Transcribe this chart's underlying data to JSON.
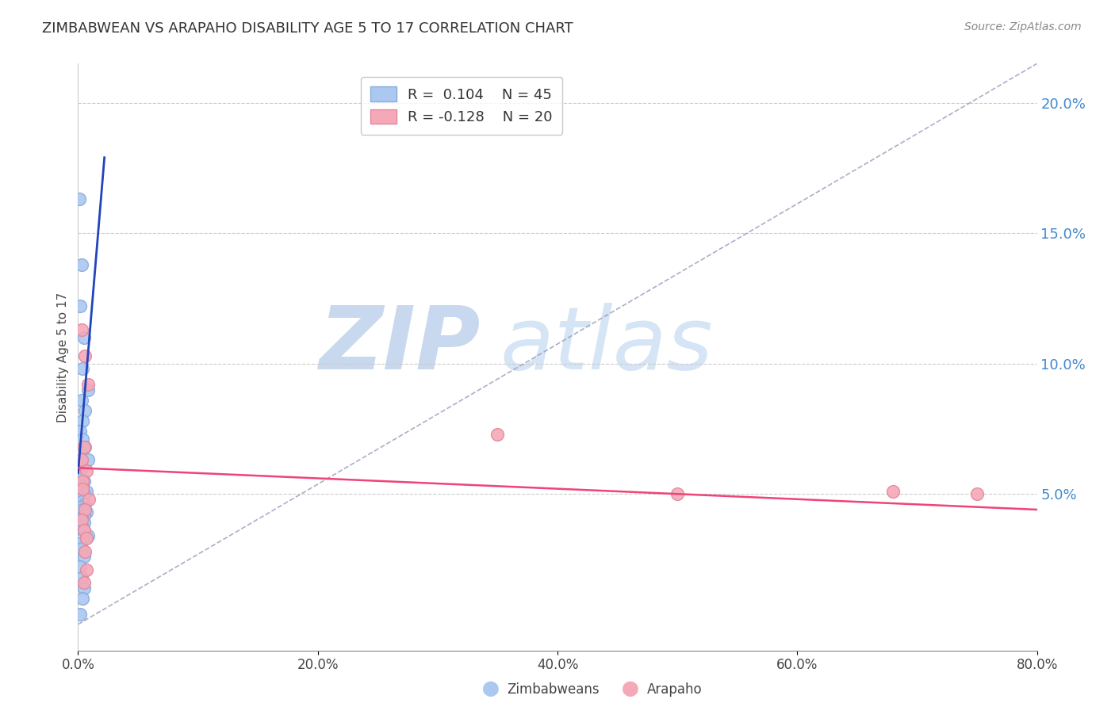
{
  "title": "ZIMBABWEAN VS ARAPAHO DISABILITY AGE 5 TO 17 CORRELATION CHART",
  "source": "Source: ZipAtlas.com",
  "ylabel": "Disability Age 5 to 17",
  "xlim": [
    0.0,
    0.8
  ],
  "ylim": [
    -0.01,
    0.215
  ],
  "xticks": [
    0.0,
    0.2,
    0.4,
    0.6,
    0.8
  ],
  "yticks_right": [
    0.05,
    0.1,
    0.15,
    0.2
  ],
  "xtick_labels": [
    "0.0%",
    "20.0%",
    "40.0%",
    "60.0%",
    "80.0%"
  ],
  "ytick_labels_right": [
    "5.0%",
    "10.0%",
    "15.0%",
    "20.0%"
  ],
  "legend_r1": "R =  0.104",
  "legend_n1": "N = 45",
  "legend_r2": "R = -0.128",
  "legend_n2": "N = 20",
  "zim_color": "#aac8f0",
  "ara_color": "#f5a8b8",
  "zim_edge": "#88aadd",
  "ara_edge": "#e08898",
  "zim_line_color": "#2244bb",
  "ara_line_color": "#ee4477",
  "ref_line_color": "#9999bb",
  "watermark_zip_color": "#c8d8ee",
  "watermark_atlas_color": "#d5e5f5",
  "zimbabwean_x": [
    0.001,
    0.003,
    0.002,
    0.005,
    0.004,
    0.008,
    0.003,
    0.006,
    0.004,
    0.002,
    0.004,
    0.006,
    0.002,
    0.008,
    0.003,
    0.002,
    0.005,
    0.003,
    0.002,
    0.007,
    0.005,
    0.004,
    0.002,
    0.003,
    0.006,
    0.002,
    0.004,
    0.007,
    0.005,
    0.003,
    0.002,
    0.005,
    0.003,
    0.002,
    0.005,
    0.008,
    0.004,
    0.002,
    0.003,
    0.005,
    0.002,
    0.003,
    0.005,
    0.004,
    0.002
  ],
  "zimbabwean_y": [
    0.163,
    0.138,
    0.122,
    0.11,
    0.098,
    0.09,
    0.086,
    0.082,
    0.078,
    0.074,
    0.071,
    0.068,
    0.066,
    0.063,
    0.06,
    0.057,
    0.055,
    0.053,
    0.052,
    0.051,
    0.05,
    0.049,
    0.048,
    0.047,
    0.046,
    0.045,
    0.044,
    0.043,
    0.042,
    0.041,
    0.04,
    0.039,
    0.038,
    0.037,
    0.036,
    0.034,
    0.033,
    0.031,
    0.029,
    0.026,
    0.022,
    0.018,
    0.014,
    0.01,
    0.004
  ],
  "arapaho_x": [
    0.003,
    0.006,
    0.008,
    0.005,
    0.003,
    0.007,
    0.004,
    0.004,
    0.009,
    0.006,
    0.003,
    0.005,
    0.35,
    0.5,
    0.68,
    0.75,
    0.007,
    0.006,
    0.007,
    0.005
  ],
  "arapaho_y": [
    0.113,
    0.103,
    0.092,
    0.068,
    0.063,
    0.059,
    0.055,
    0.052,
    0.048,
    0.044,
    0.04,
    0.036,
    0.073,
    0.05,
    0.051,
    0.05,
    0.033,
    0.028,
    0.021,
    0.016
  ],
  "zim_trend_x": [
    0.0,
    0.025
  ],
  "zim_trend_y_start": 0.058,
  "zim_trend_slope": 5.5,
  "ara_trend_x": [
    0.0,
    0.8
  ],
  "ara_trend_y_start": 0.06,
  "ara_trend_y_end": 0.044
}
